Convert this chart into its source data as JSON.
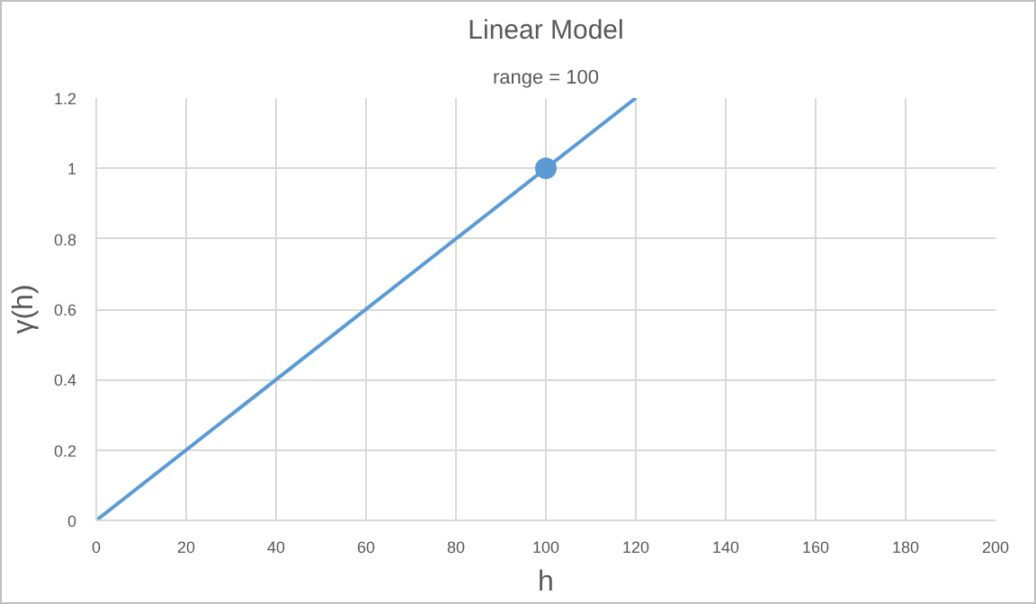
{
  "chart_data": {
    "type": "line",
    "title": "Linear Model",
    "subtitle": "range = 100",
    "xlabel": "h",
    "ylabel": "γ(h)",
    "xlim": [
      0,
      200
    ],
    "xticks": [
      0,
      20,
      40,
      60,
      80,
      100,
      120,
      140,
      160,
      180,
      200
    ],
    "ylim": [
      0,
      1.2
    ],
    "yticks": [
      0,
      0.2,
      0.4,
      0.6,
      0.8,
      1,
      1.2
    ],
    "grid": true,
    "series": [
      {
        "color": "#5b9bd5",
        "x": [
          0,
          120
        ],
        "values": [
          0,
          1.2
        ],
        "marker": "none"
      },
      {
        "type": "scatter",
        "color": "#5b9bd5",
        "x": [
          100
        ],
        "values": [
          1
        ],
        "marker": "circle"
      }
    ]
  }
}
